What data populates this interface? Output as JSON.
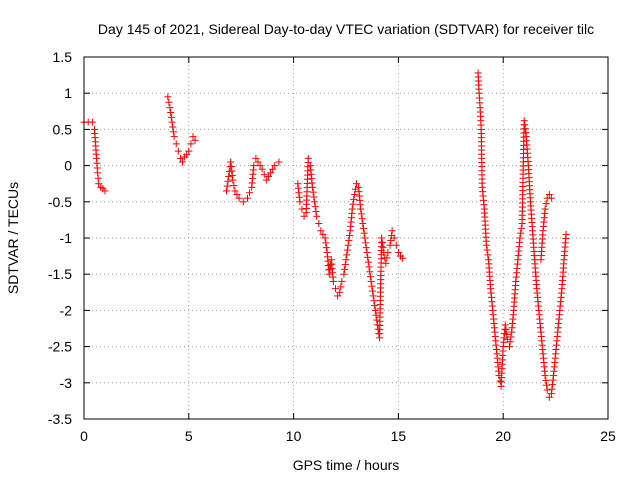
{
  "chart_data": {
    "type": "scatter",
    "title": "Day 145 of 2021, Sidereal Day-to-day VTEC variation (SDTVAR) for receiver tilc",
    "xlabel": "GPS time / hours",
    "ylabel": "SDTVAR / TECUs",
    "xlim": [
      0,
      25
    ],
    "ylim": [
      -3.5,
      1.5
    ],
    "xticks": [
      0,
      5,
      10,
      15,
      20,
      25
    ],
    "xtick_labels": [
      "0",
      "5",
      "10",
      "15",
      "20",
      "25"
    ],
    "yticks": [
      -3.5,
      -3,
      -2.5,
      -2,
      -1.5,
      -1,
      -0.5,
      0,
      0.5,
      1,
      1.5
    ],
    "ytick_labels": [
      "-3.5",
      "-3",
      "-2.5",
      "-2",
      "-1.5",
      "-1",
      "-0.5",
      "0",
      "0.5",
      "1",
      "1.5"
    ],
    "grid": true,
    "marker": "+",
    "color": "#ff0000",
    "segments": [
      {
        "x": [
          0.0,
          0.2,
          0.4,
          0.5,
          0.6,
          0.65,
          0.7,
          0.8,
          0.9,
          1.0
        ],
        "y": [
          0.6,
          0.6,
          0.6,
          0.5,
          0.1,
          -0.1,
          -0.25,
          -0.3,
          -0.32,
          -0.35
        ]
      },
      {
        "x": [
          4.0,
          4.1,
          4.2,
          4.3,
          4.4,
          4.5,
          4.6,
          4.7,
          4.8,
          4.9,
          5.0,
          5.1,
          5.2,
          5.3
        ],
        "y": [
          0.95,
          0.8,
          0.6,
          0.4,
          0.3,
          0.2,
          0.1,
          0.05,
          0.12,
          0.15,
          0.2,
          0.3,
          0.4,
          0.35
        ]
      },
      {
        "x": [
          6.8,
          6.9,
          7.0,
          7.1,
          7.2,
          7.4,
          7.6,
          7.8,
          8.0,
          8.1,
          8.2,
          8.3,
          8.5,
          8.7,
          8.9,
          9.1,
          9.3
        ],
        "y": [
          -0.35,
          -0.15,
          0.05,
          -0.2,
          -0.35,
          -0.45,
          -0.5,
          -0.45,
          -0.3,
          0.0,
          0.1,
          0.05,
          -0.05,
          -0.2,
          -0.1,
          0.0,
          0.05
        ]
      },
      {
        "x": [
          10.2,
          10.3,
          10.4,
          10.5,
          10.6,
          10.7,
          10.8,
          10.9,
          11.0,
          11.1,
          11.2,
          11.3,
          11.4,
          11.5,
          11.6,
          11.7,
          11.8,
          11.9,
          12.0,
          12.1,
          12.2,
          12.3,
          12.4,
          12.5,
          12.6,
          12.7,
          12.8,
          12.9,
          13.0,
          13.1,
          13.2,
          13.3,
          13.4,
          13.5,
          13.6,
          13.7,
          13.8,
          13.9,
          14.0,
          14.1,
          14.2,
          14.3,
          14.4,
          14.5,
          14.6,
          14.7,
          14.8,
          14.9,
          15.0,
          15.1,
          15.2
        ],
        "y": [
          -0.25,
          -0.5,
          -0.6,
          -0.7,
          -0.65,
          0.1,
          0.0,
          -0.3,
          -0.5,
          -0.7,
          -0.8,
          -0.9,
          -0.95,
          -1.0,
          -1.2,
          -1.5,
          -1.3,
          -1.6,
          -1.7,
          -1.8,
          -1.75,
          -1.6,
          -1.5,
          -1.3,
          -1.1,
          -0.9,
          -0.6,
          -0.4,
          -0.25,
          -0.3,
          -0.6,
          -0.8,
          -1.0,
          -1.2,
          -1.4,
          -1.6,
          -1.8,
          -2.0,
          -2.2,
          -2.38,
          -1.0,
          -1.2,
          -1.35,
          -1.2,
          -1.1,
          -0.9,
          -1.0,
          -1.1,
          -1.2,
          -1.25,
          -1.28
        ]
      },
      {
        "x": [
          18.8,
          18.85,
          18.9,
          18.95,
          19.0,
          19.1,
          19.2,
          19.3,
          19.4,
          19.5,
          19.6,
          19.7,
          19.8,
          19.9,
          20.0,
          20.1,
          20.2,
          20.3,
          20.4,
          20.5,
          20.6,
          20.7,
          20.8,
          20.9,
          21.0,
          21.1,
          21.2,
          21.3,
          21.4,
          21.5,
          21.6,
          21.7,
          21.8,
          21.9,
          22.0,
          22.1,
          22.2,
          22.3,
          22.4,
          22.5,
          22.6,
          22.7,
          22.8,
          22.9,
          23.0
        ],
        "y": [
          1.28,
          1.0,
          0.8,
          0.5,
          -0.3,
          -0.6,
          -1.1,
          -1.3,
          -1.7,
          -2.0,
          -2.3,
          -2.6,
          -2.9,
          -3.05,
          -2.5,
          -2.2,
          -2.4,
          -2.5,
          -2.3,
          -2.0,
          -1.6,
          -1.3,
          -1.0,
          -0.8,
          0.62,
          0.4,
          0.0,
          -0.5,
          -0.9,
          -1.3,
          -1.7,
          -2.0,
          -2.3,
          -2.6,
          -2.9,
          -3.1,
          -3.2,
          -3.15,
          -2.9,
          -2.6,
          -2.3,
          -2.0,
          -1.7,
          -1.3,
          -0.95
        ]
      },
      {
        "x": [
          21.8,
          21.9,
          22.0,
          22.1,
          22.2,
          22.3
        ],
        "y": [
          -1.3,
          -0.9,
          -0.6,
          -0.45,
          -0.4,
          -0.45
        ]
      }
    ]
  }
}
